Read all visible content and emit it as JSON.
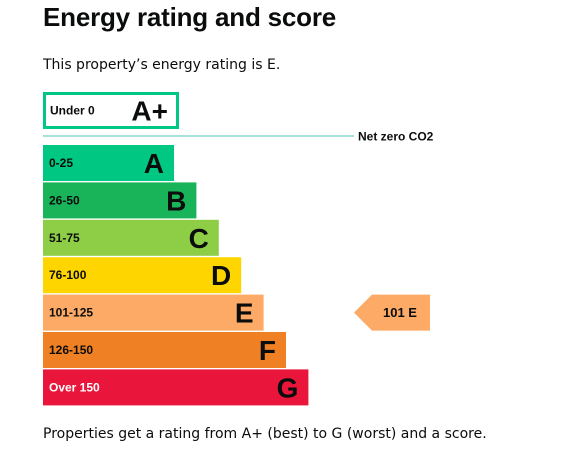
{
  "page": {
    "title": "Energy rating and score",
    "intro": "This property’s energy rating is E.",
    "footer": "Properties get a rating from A+ (best) to G (worst) and a score."
  },
  "chart_data": {
    "type": "bar",
    "net_zero_label": "Net zero CO2",
    "bands": [
      {
        "letter": "A+",
        "range": "Under 0",
        "color": "#00c781",
        "style": "outline",
        "rank": 1
      },
      {
        "letter": "A",
        "range": "0-25",
        "color": "#00c781",
        "style": "filled",
        "rank": 2
      },
      {
        "letter": "B",
        "range": "26-50",
        "color": "#19b459",
        "style": "filled",
        "rank": 3
      },
      {
        "letter": "C",
        "range": "51-75",
        "color": "#8dce46",
        "style": "filled",
        "rank": 4
      },
      {
        "letter": "D",
        "range": "76-100",
        "color": "#ffd500",
        "style": "filled",
        "rank": 5
      },
      {
        "letter": "E",
        "range": "101-125",
        "color": "#fcaa65",
        "style": "filled",
        "rank": 6
      },
      {
        "letter": "F",
        "range": "126-150",
        "color": "#ef8023",
        "style": "filled",
        "rank": 7
      },
      {
        "letter": "G",
        "range": "Over 150",
        "color": "#e9153b",
        "style": "filled",
        "rank": 8
      }
    ],
    "current": {
      "score": 101,
      "rating": "E",
      "label": "101 E",
      "color": "#fcaa65"
    }
  }
}
